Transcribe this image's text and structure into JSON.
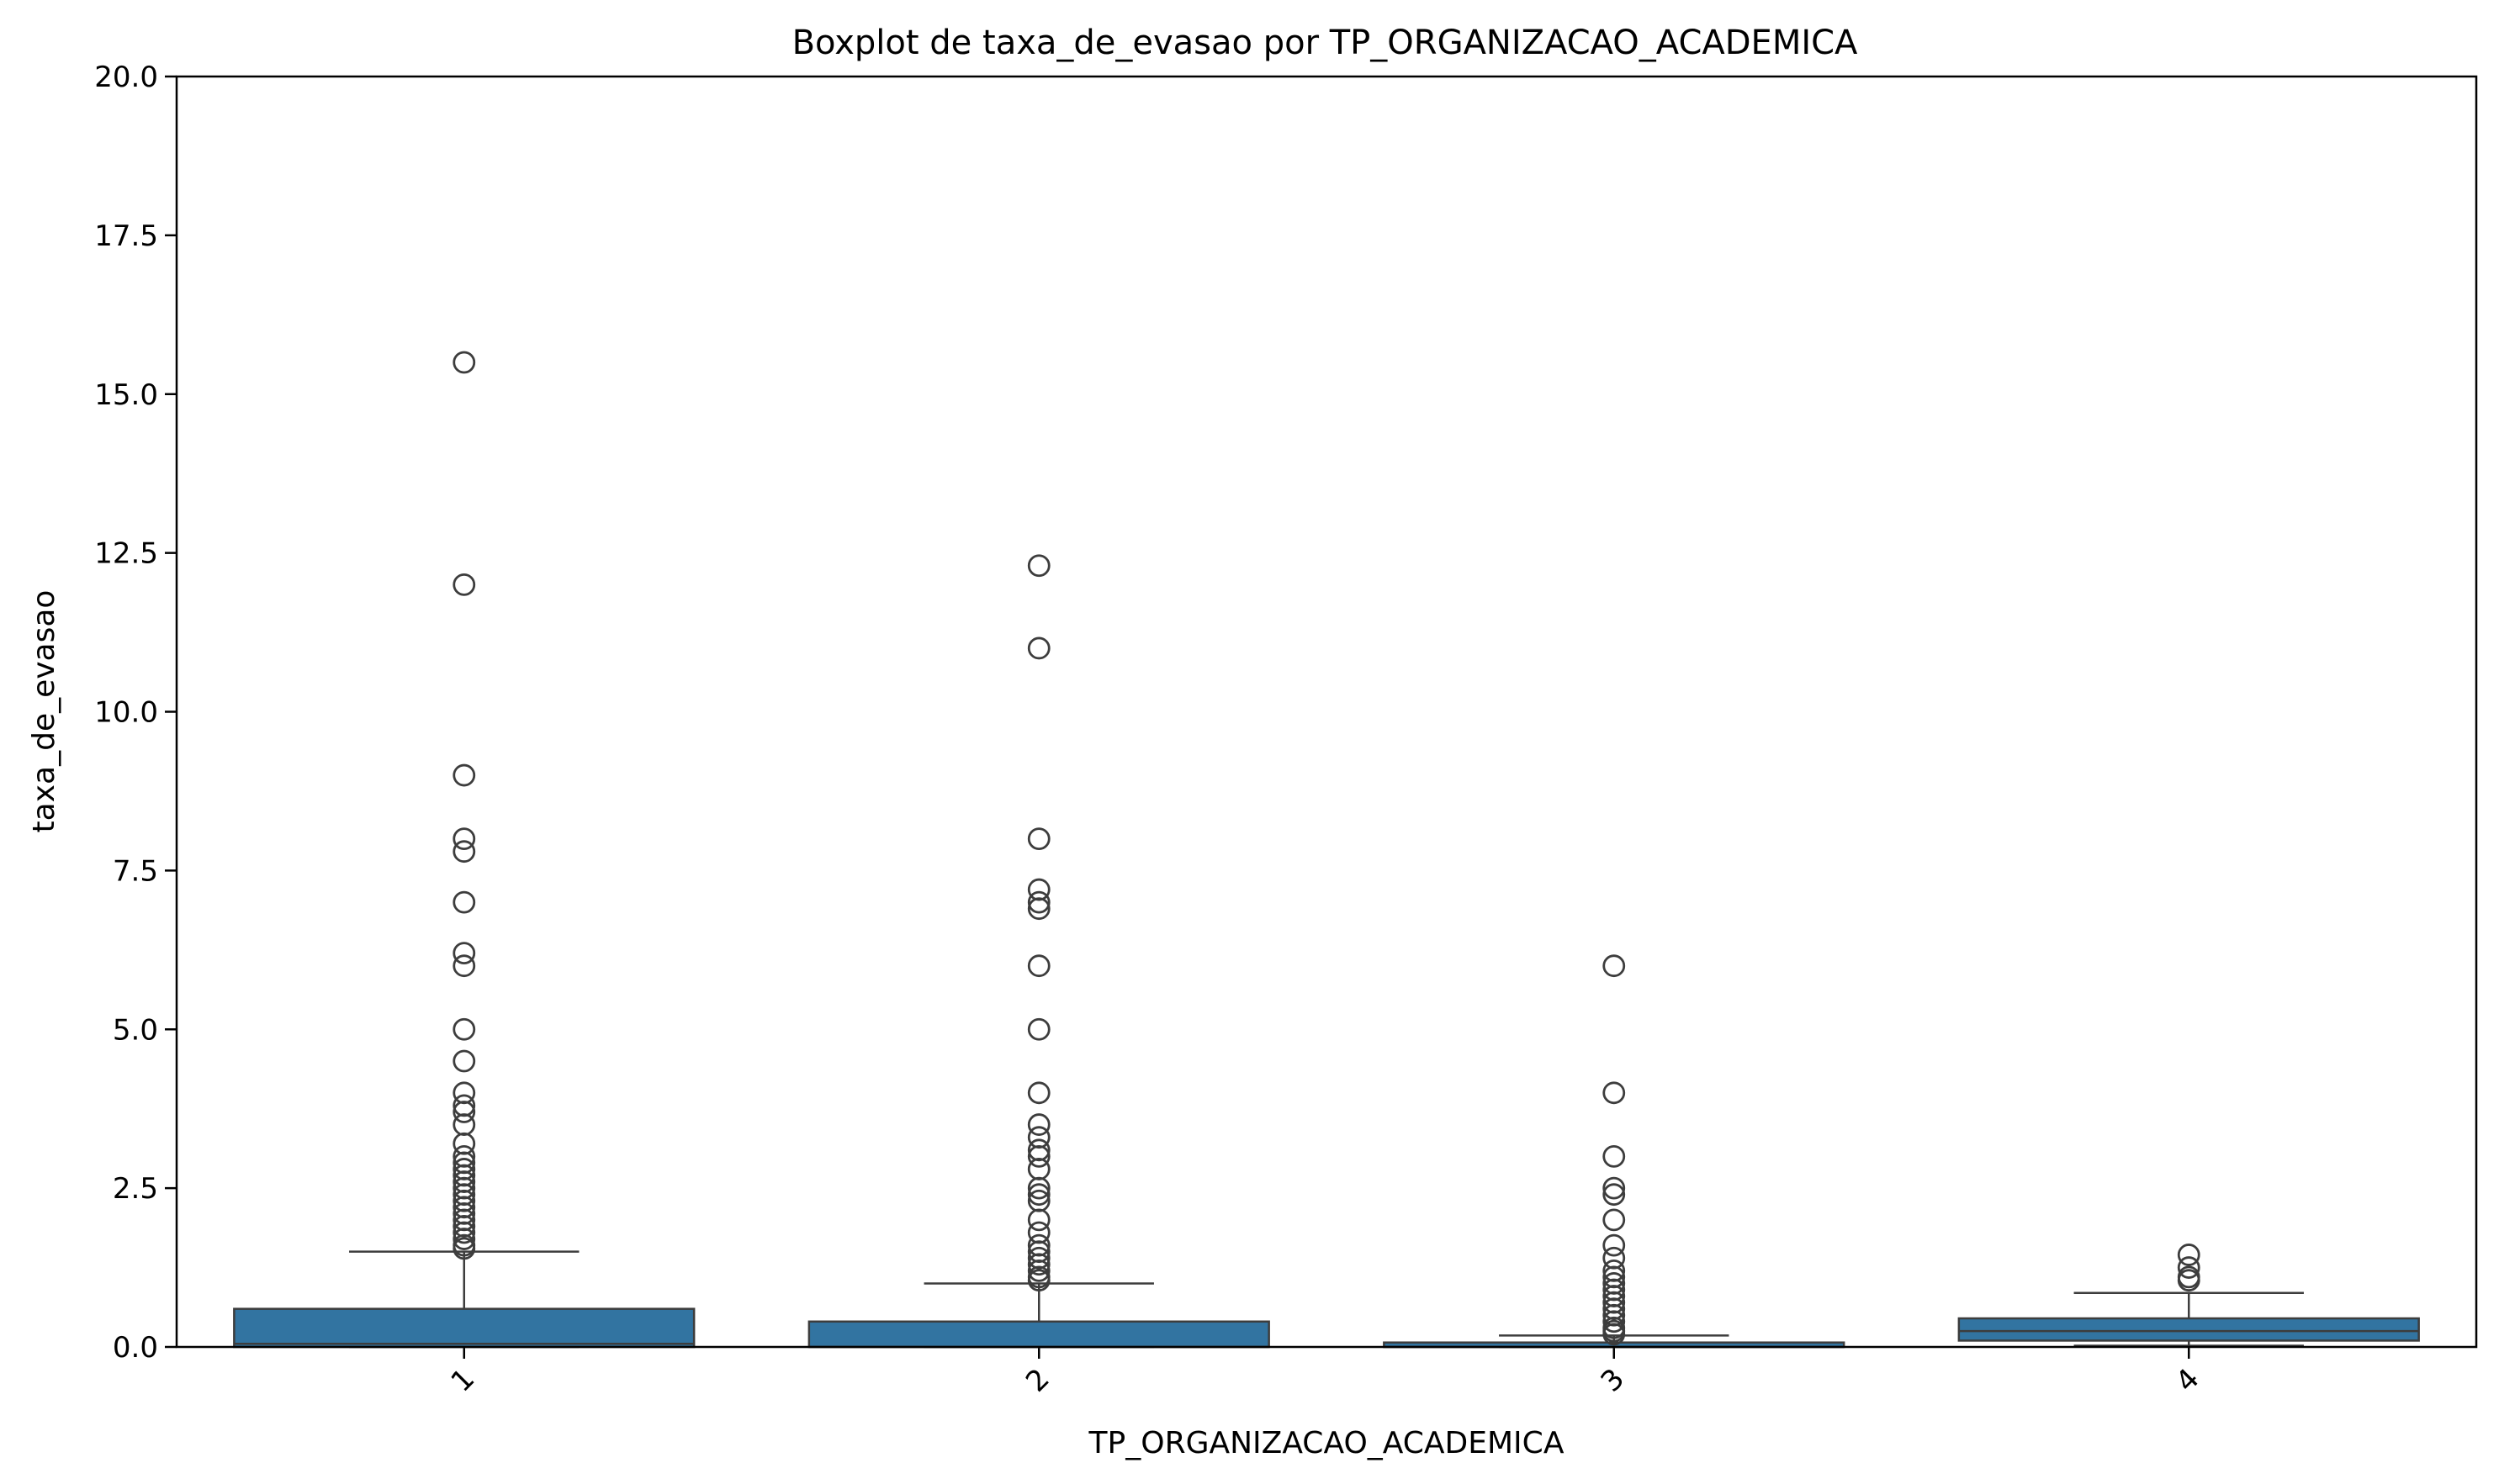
{
  "chart_data": {
    "type": "boxplot",
    "title": "Boxplot de taxa_de_evasao por TP_ORGANIZACAO_ACADEMICA",
    "xlabel": "TP_ORGANIZACAO_ACADEMICA",
    "ylabel": "taxa_de_evasao",
    "categories": [
      "1",
      "2",
      "3",
      "4"
    ],
    "ylim": [
      0,
      20
    ],
    "yticks": [
      "0.0",
      "2.5",
      "5.0",
      "7.5",
      "10.0",
      "12.5",
      "15.0",
      "17.5",
      "20.0"
    ],
    "ytick_values": [
      0,
      2.5,
      5,
      7.5,
      10,
      12.5,
      15,
      17.5,
      20
    ],
    "grid": false,
    "x_tick_rotation_deg": 45,
    "box_color": "#3274a1",
    "edge_color": "#3d3d3d",
    "boxes": [
      {
        "category": "1",
        "whisker_low": 0.0,
        "q1": 0.0,
        "median": 0.05,
        "q3": 0.6,
        "whisker_high": 1.5,
        "outliers": [
          15.5,
          12.0,
          9.0,
          8.0,
          7.8,
          7.0,
          6.2,
          6.0,
          5.0,
          4.5,
          4.0,
          3.8,
          3.7,
          3.5,
          3.2,
          3.0,
          2.9,
          2.8,
          2.7,
          2.6,
          2.5,
          2.4,
          2.3,
          2.2,
          2.1,
          2.0,
          1.9,
          1.8,
          1.7,
          1.6,
          1.55
        ]
      },
      {
        "category": "2",
        "whisker_low": 0.0,
        "q1": 0.0,
        "median": 0.0,
        "q3": 0.4,
        "whisker_high": 1.0,
        "outliers": [
          12.3,
          11.0,
          8.0,
          7.2,
          7.0,
          6.9,
          6.0,
          5.0,
          4.0,
          3.5,
          3.3,
          3.1,
          3.0,
          2.8,
          2.5,
          2.4,
          2.3,
          2.0,
          1.8,
          1.6,
          1.5,
          1.4,
          1.3,
          1.2,
          1.1,
          1.05
        ]
      },
      {
        "category": "3",
        "whisker_low": 0.0,
        "q1": 0.0,
        "median": 0.0,
        "q3": 0.07,
        "whisker_high": 0.18,
        "outliers": [
          6.0,
          4.0,
          3.0,
          2.5,
          2.4,
          2.0,
          1.6,
          1.4,
          1.2,
          1.1,
          1.0,
          0.9,
          0.8,
          0.7,
          0.6,
          0.5,
          0.4,
          0.3,
          0.25,
          0.2
        ]
      },
      {
        "category": "4",
        "whisker_low": 0.02,
        "q1": 0.1,
        "median": 0.25,
        "q3": 0.45,
        "whisker_high": 0.85,
        "outliers": [
          1.45,
          1.25,
          1.1,
          1.05
        ]
      }
    ]
  }
}
